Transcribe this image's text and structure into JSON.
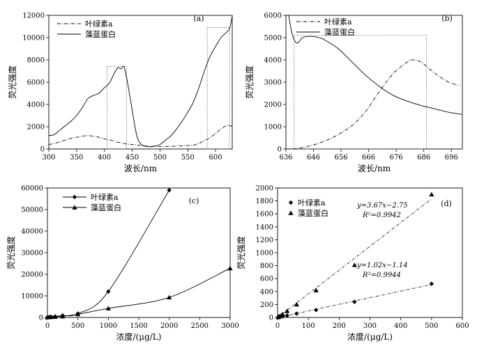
{
  "chart_data": [
    {
      "id": "a",
      "type": "line",
      "panel_label": "(a)",
      "xlabel": "波长/nm",
      "ylabel": "荧光强度",
      "xlim": [
        300,
        630
      ],
      "ylim": [
        0,
        12000
      ],
      "xticks": [
        300,
        350,
        400,
        450,
        500,
        550,
        600
      ],
      "yticks": [
        0,
        2000,
        4000,
        6000,
        8000,
        10000,
        12000
      ],
      "legend_position": "top-left",
      "series": [
        {
          "name": "叶绿素a",
          "style": "dashdot",
          "x": [
            300,
            310,
            320,
            330,
            340,
            350,
            360,
            370,
            380,
            390,
            400,
            405,
            410,
            415,
            420,
            425,
            430,
            435,
            440,
            445,
            450,
            455,
            460,
            465,
            470,
            480,
            490,
            500,
            520,
            540,
            560,
            570,
            580,
            590,
            600,
            610,
            620,
            630
          ],
          "y": [
            400,
            500,
            650,
            800,
            950,
            1050,
            1150,
            1200,
            1150,
            1050,
            900,
            850,
            800,
            750,
            650,
            600,
            550,
            500,
            450,
            420,
            400,
            380,
            350,
            320,
            280,
            250,
            230,
            220,
            240,
            280,
            350,
            500,
            750,
            1000,
            1400,
            1800,
            2100,
            2050
          ]
        },
        {
          "name": "藻蓝蛋白",
          "style": "solid",
          "x": [
            300,
            310,
            320,
            330,
            340,
            350,
            360,
            370,
            380,
            390,
            400,
            405,
            410,
            415,
            420,
            425,
            430,
            435,
            440,
            445,
            450,
            455,
            460,
            465,
            470,
            480,
            490,
            500,
            510,
            520,
            530,
            540,
            550,
            560,
            570,
            580,
            590,
            600,
            610,
            620,
            625,
            630
          ],
          "y": [
            1200,
            1300,
            1700,
            2100,
            2500,
            3000,
            3700,
            4500,
            4800,
            5000,
            5500,
            5700,
            6000,
            6500,
            7000,
            7300,
            7200,
            7400,
            6400,
            5000,
            3500,
            2000,
            900,
            500,
            300,
            200,
            250,
            400,
            800,
            1200,
            1800,
            2500,
            3300,
            4200,
            5500,
            7000,
            8300,
            9200,
            10000,
            10500,
            10800,
            11900
          ]
        }
      ],
      "highlight_boxes": [
        {
          "x": [
            405,
            440
          ],
          "y": [
            0,
            7400
          ]
        },
        {
          "x": [
            585,
            625
          ],
          "y": [
            0,
            10900
          ]
        }
      ]
    },
    {
      "id": "b",
      "type": "line",
      "panel_label": "(b)",
      "xlabel": "波长/nm",
      "ylabel": "荧光强度",
      "xlim": [
        636,
        700
      ],
      "ylim": [
        0,
        6000
      ],
      "xticks": [
        636,
        646,
        656,
        666,
        676,
        686,
        696
      ],
      "yticks": [
        0,
        1000,
        2000,
        3000,
        4000,
        5000,
        6000
      ],
      "legend_position": "top-left",
      "series": [
        {
          "name": "叶绿素a",
          "style": "dashdot",
          "x": [
            636,
            640,
            645,
            650,
            655,
            660,
            665,
            670,
            675,
            680,
            682,
            685,
            690,
            695,
            699
          ],
          "y": [
            0,
            20,
            150,
            350,
            650,
            1050,
            1700,
            2600,
            3400,
            3900,
            4000,
            3900,
            3400,
            3000,
            2850
          ]
        },
        {
          "name": "藻蓝蛋白",
          "style": "solid",
          "x": [
            637,
            638,
            639,
            640,
            641,
            642,
            644,
            646,
            648,
            650,
            655,
            660,
            665,
            670,
            675,
            680,
            685,
            690,
            695,
            700
          ],
          "y": [
            6000,
            5300,
            4900,
            4750,
            4850,
            5000,
            5050,
            5050,
            5000,
            4900,
            4500,
            3900,
            3300,
            2800,
            2400,
            2150,
            1950,
            1800,
            1650,
            1550
          ]
        }
      ],
      "highlight_boxes": [
        {
          "x": [
            639,
            687
          ],
          "y": [
            0,
            5100
          ]
        }
      ]
    },
    {
      "id": "c",
      "type": "line",
      "panel_label": "(c)",
      "xlabel": "浓度/(μg/L)",
      "ylabel": "荧光强度",
      "xlim": [
        0,
        3000
      ],
      "ylim": [
        0,
        60000
      ],
      "xticks": [
        0,
        500,
        1000,
        1500,
        2000,
        2500,
        3000
      ],
      "yticks": [
        0,
        10000,
        20000,
        30000,
        40000,
        50000,
        60000
      ],
      "legend_position": "top-left",
      "series": [
        {
          "name": "叶绿素a",
          "marker": "diamond",
          "x": [
            0,
            31,
            62,
            125,
            250,
            500,
            1000,
            2000
          ],
          "y": [
            100,
            200,
            300,
            500,
            900,
            1800,
            12000,
            59000
          ]
        },
        {
          "name": "藻蓝蛋白",
          "marker": "triangle",
          "x": [
            0,
            31,
            62,
            125,
            250,
            500,
            1000,
            2000,
            3000
          ],
          "y": [
            100,
            150,
            200,
            300,
            500,
            1500,
            4200,
            9300,
            22800
          ]
        }
      ]
    },
    {
      "id": "d",
      "type": "scatter",
      "panel_label": "(d)",
      "xlabel": "浓度/(μg/L)",
      "ylabel": "荧光强度",
      "xlim": [
        0,
        600
      ],
      "ylim": [
        0,
        2000
      ],
      "xticks": [
        0,
        100,
        200,
        300,
        400,
        500,
        600
      ],
      "yticks": [
        0,
        200,
        400,
        600,
        800,
        1000,
        1200,
        1400,
        1600,
        1800,
        2000
      ],
      "legend_position": "top-left",
      "series": [
        {
          "name": "叶绿素a",
          "marker": "diamond",
          "x": [
            2,
            4,
            8,
            16,
            31,
            62,
            125,
            250,
            500
          ],
          "y": [
            2,
            4,
            8,
            16,
            30,
            60,
            115,
            240,
            520
          ],
          "fit_eq": "y=1.02x−1.14",
          "fit_r2": "R²=0.9944",
          "fit": {
            "slope": 1.02,
            "intercept": -1.14
          }
        },
        {
          "name": "藻蓝蛋白",
          "marker": "triangle",
          "x": [
            2,
            4,
            8,
            16,
            31,
            62,
            125,
            250,
            500
          ],
          "y": [
            5,
            12,
            25,
            50,
            100,
            200,
            420,
            810,
            1900
          ],
          "fit_eq": "y=3.67x−2.75",
          "fit_r2": "R²=0.9942",
          "fit": {
            "slope": 3.67,
            "intercept": -2.75
          }
        }
      ]
    }
  ]
}
